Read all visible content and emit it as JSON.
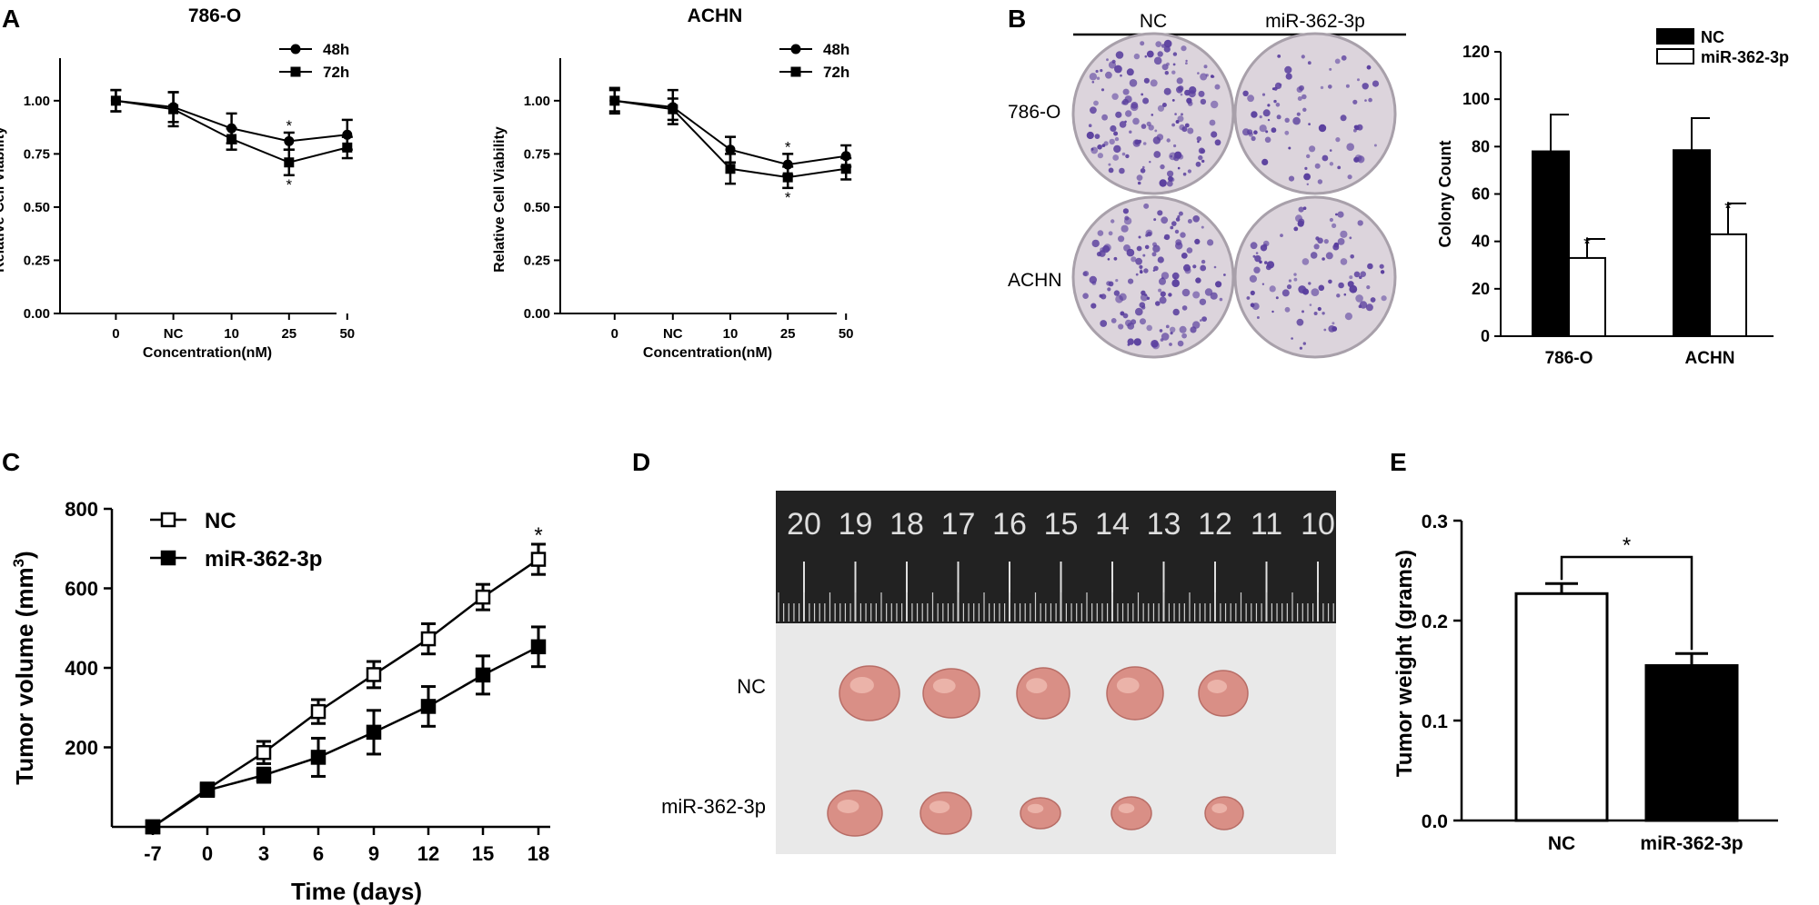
{
  "panel_letters": {
    "a": "A",
    "b": "B",
    "c": "C",
    "d": "D",
    "e": "E"
  },
  "colors": {
    "ink": "#000000",
    "paper": "#ffffff",
    "ruler": "#222222",
    "plate": "#dcd4dc",
    "colony": "#5a3f9e",
    "tissue": "#d98f86",
    "background_board": "#e9e9e9"
  },
  "panel_b_photo": {
    "column_labels": [
      "NC",
      "miR-362-3p"
    ],
    "row_labels": [
      "786-O",
      "ACHN"
    ]
  },
  "panel_d_photo": {
    "ruler_numbers": [
      "20",
      "19",
      "18",
      "17",
      "16",
      "15",
      "14",
      "13",
      "12",
      "11",
      "10"
    ],
    "row_labels": [
      "NC",
      "miR-362-3p"
    ]
  },
  "chart_data": [
    {
      "id": "a1",
      "type": "line",
      "title": "786-O",
      "xlabel": "Concentration(nM)",
      "ylabel": "Relative Cell Viability",
      "categories": [
        "0",
        "NC",
        "10",
        "25",
        "50"
      ],
      "ylim": [
        0,
        1.2
      ],
      "yticks": [
        "0.00",
        "0.25",
        "0.50",
        "0.75",
        "1.00"
      ],
      "legend_position": "top-right",
      "series": [
        {
          "name": "48h",
          "marker": "circle",
          "values": [
            1.0,
            0.97,
            0.87,
            0.81,
            0.84
          ],
          "errors": [
            0.05,
            0.07,
            0.07,
            0.04,
            0.07
          ]
        },
        {
          "name": "72h",
          "marker": "square",
          "values": [
            1.0,
            0.96,
            0.82,
            0.71,
            0.78
          ],
          "errors": [
            0.05,
            0.08,
            0.05,
            0.06,
            0.05
          ]
        }
      ],
      "significance": [
        "*",
        "*"
      ]
    },
    {
      "id": "a2",
      "type": "line",
      "title": "ACHN",
      "xlabel": "Concentration(nM)",
      "ylabel": "Relative Cell Viability",
      "categories": [
        "0",
        "NC",
        "10",
        "25",
        "50"
      ],
      "ylim": [
        0,
        1.2
      ],
      "yticks": [
        "0.00",
        "0.25",
        "0.50",
        "0.75",
        "1.00"
      ],
      "legend_position": "top-right",
      "series": [
        {
          "name": "48h",
          "marker": "circle",
          "values": [
            1.0,
            0.97,
            0.77,
            0.7,
            0.74
          ],
          "errors": [
            0.06,
            0.08,
            0.06,
            0.05,
            0.05
          ]
        },
        {
          "name": "72h",
          "marker": "square",
          "values": [
            1.0,
            0.96,
            0.68,
            0.64,
            0.68
          ],
          "errors": [
            0.05,
            0.05,
            0.07,
            0.05,
            0.05
          ]
        }
      ],
      "significance": [
        "*",
        "*"
      ]
    },
    {
      "id": "b",
      "type": "bar",
      "xlabel": "",
      "ylabel": "Colony Count",
      "categories": [
        "786-O",
        "ACHN"
      ],
      "ylim": [
        0,
        120
      ],
      "yticks": [
        "0",
        "20",
        "40",
        "60",
        "80",
        "100",
        "120"
      ],
      "legend_position": "top-right",
      "series": [
        {
          "name": "NC",
          "fill": "#000000",
          "values": [
            78,
            78.5
          ],
          "errors": [
            15.5,
            13.5
          ]
        },
        {
          "name": "miR-362-3p",
          "fill": "#ffffff",
          "values": [
            33,
            43
          ],
          "errors": [
            8,
            13
          ]
        }
      ],
      "significance": [
        "*",
        "*"
      ]
    },
    {
      "id": "c",
      "type": "line",
      "xlabel": "Time (days)",
      "ylabel": "Tumor volume (mm",
      "ylabel_superscript": "3",
      "ylabel_close": ")",
      "x": [
        -7,
        0,
        3,
        6,
        9,
        12,
        15,
        18
      ],
      "xticks": [
        "-7",
        "0",
        "3",
        "6",
        "9",
        "12",
        "15",
        "18"
      ],
      "ylim": [
        0,
        800
      ],
      "yticks": [
        "200",
        "400",
        "600",
        "800"
      ],
      "legend_position": "top-left",
      "series": [
        {
          "name": "NC",
          "marker": "open-square",
          "values": [
            0,
            95,
            187,
            290,
            383,
            473,
            578,
            673
          ],
          "errors": [
            0,
            12,
            28,
            30,
            33,
            38,
            32,
            38
          ]
        },
        {
          "name": "miR-362-3p",
          "marker": "filled-square",
          "values": [
            0,
            92,
            130,
            175,
            238,
            303,
            382,
            453
          ],
          "errors": [
            0,
            12,
            18,
            48,
            55,
            50,
            48,
            50
          ]
        }
      ],
      "significance": [
        "*"
      ]
    },
    {
      "id": "e",
      "type": "bar",
      "xlabel": "",
      "ylabel": "Tumor weight (grams)",
      "categories": [
        "NC",
        "miR-362-3p"
      ],
      "ylim": [
        0,
        0.3
      ],
      "yticks": [
        "0.0",
        "0.1",
        "0.2",
        "0.3"
      ],
      "fills": [
        "#ffffff",
        "#000000"
      ],
      "values": [
        0.227,
        0.155
      ],
      "errors": [
        0.01,
        0.012
      ],
      "significance": "*"
    }
  ]
}
